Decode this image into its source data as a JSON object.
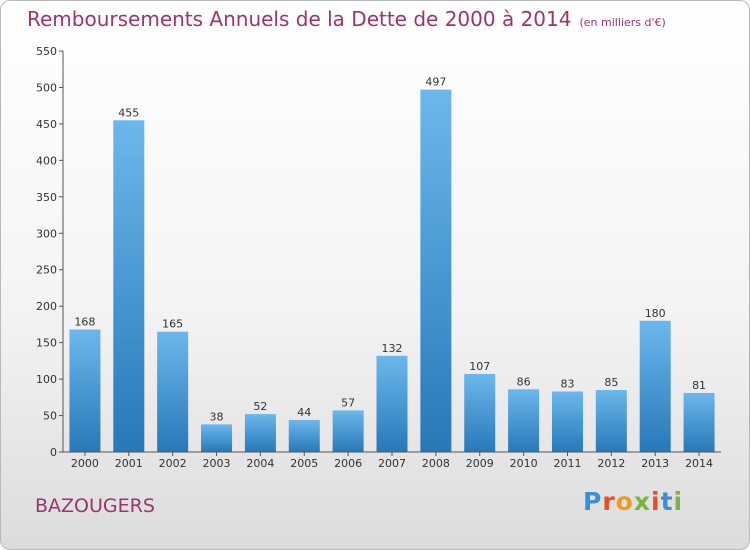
{
  "header": {
    "title": "Remboursements Annuels de la Dette de 2000 à 2014",
    "unit": "(en milliers d'€)"
  },
  "commune": "BAZOUGERS",
  "logo": {
    "text": "Proxiti",
    "letter_colors": [
      "#3a8fd6",
      "#e8501f",
      "#f39a1e",
      "#7cb342",
      "#e8501f",
      "#3a8fd6",
      "#7cb342"
    ]
  },
  "colors": {
    "bar_top": "#6cb8ec",
    "bar_bottom": "#2878b8",
    "axis": "#555555",
    "title": "#9b3470"
  },
  "chart_data": {
    "type": "bar",
    "title": "Remboursements Annuels de la Dette de 2000 à 2014",
    "categories": [
      "2000",
      "2001",
      "2002",
      "2003",
      "2004",
      "2005",
      "2006",
      "2007",
      "2008",
      "2009",
      "2010",
      "2011",
      "2012",
      "2013",
      "2014"
    ],
    "values": [
      168,
      455,
      165,
      38,
      52,
      44,
      57,
      132,
      497,
      107,
      86,
      83,
      85,
      180,
      81
    ],
    "ylim": [
      0,
      550
    ],
    "yticks": [
      0,
      50,
      100,
      150,
      200,
      250,
      300,
      350,
      400,
      450,
      500,
      550
    ],
    "grid": false,
    "legend": "none",
    "data_labels": true
  }
}
